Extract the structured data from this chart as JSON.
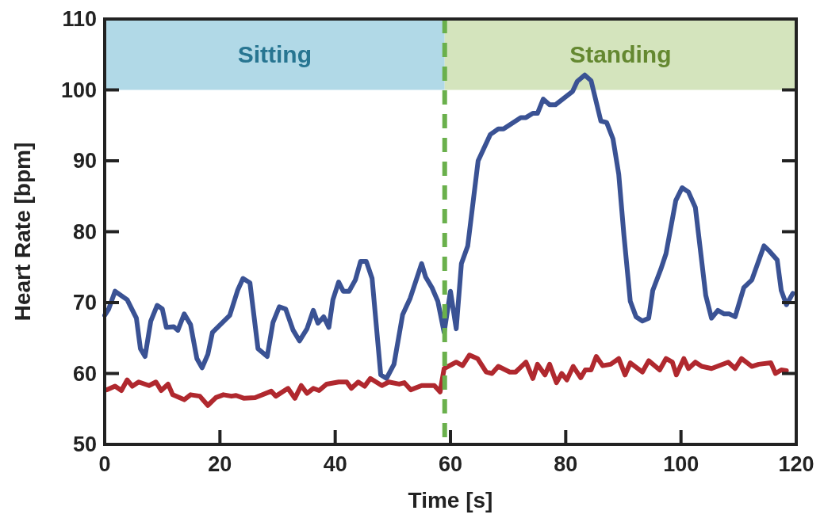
{
  "chart_data": {
    "type": "line",
    "xlabel": "Time [s]",
    "ylabel": "Heart Rate [bpm]",
    "xlim": [
      0,
      120
    ],
    "ylim": [
      50,
      110
    ],
    "xticks": [
      0,
      20,
      40,
      60,
      80,
      100,
      120
    ],
    "yticks": [
      50,
      60,
      70,
      80,
      90,
      100,
      110
    ],
    "grid": false,
    "marker": "none",
    "line_style": "solid",
    "series": [
      {
        "color": "#3a5294",
        "x": [
          0,
          0.7,
          1.8,
          3.9,
          5.5,
          6.2,
          7,
          8,
          9.1,
          10,
          10.7,
          12,
          12.7,
          13.8,
          14.9,
          16,
          16.9,
          17.9,
          18.7,
          21.7,
          23.1,
          24,
          25.2,
          26.6,
          28.2,
          29.2,
          30.3,
          31.4,
          32.7,
          33.8,
          35.1,
          36.2,
          37,
          38,
          38.9,
          39.6,
          40.6,
          41.4,
          42.4,
          43.5,
          44.4,
          45.4,
          46.4,
          47.9,
          48.9,
          50.2,
          51.7,
          53,
          55,
          55.7,
          56.8,
          57.8,
          58.9,
          60,
          61,
          61.9,
          63,
          64.8,
          66.9,
          68.3,
          69.2,
          72.2,
          73.1,
          74.3,
          75.1,
          76.1,
          77.2,
          78.2,
          81.2,
          82,
          83.3,
          84.4,
          86.1,
          87.1,
          88.2,
          89.2,
          90.1,
          91.2,
          92.2,
          93.3,
          94.4,
          95.1,
          96.5,
          97.4,
          99.1,
          100.2,
          101.3,
          102.5,
          104.3,
          105.3,
          106.4,
          107.5,
          108.4,
          109.4,
          110.9,
          112.3,
          114.4,
          115.3,
          116.7,
          117.4,
          118.3,
          119.4
        ],
        "values": [
          68.2,
          69.1,
          71.6,
          70.4,
          67.8,
          63.5,
          62.4,
          67.4,
          69.6,
          69.1,
          66.5,
          66.6,
          66.1,
          68.4,
          66.9,
          62.1,
          60.8,
          62.7,
          65.8,
          68.2,
          71.8,
          73.4,
          72.8,
          63.5,
          62.4,
          67.2,
          69.4,
          69.1,
          66.1,
          64.6,
          66.3,
          68.9,
          67.1,
          68,
          66.5,
          70.4,
          72.9,
          71.6,
          71.6,
          73.2,
          75.8,
          75.8,
          73.4,
          59.8,
          59.3,
          61.3,
          68.3,
          70.6,
          75.5,
          73.6,
          72.1,
          70.2,
          65.8,
          71.6,
          66.3,
          75.5,
          78,
          90,
          93.7,
          94.5,
          94.5,
          96.1,
          96.1,
          96.7,
          96.7,
          98.7,
          97.9,
          97.9,
          99.8,
          101.2,
          102.1,
          101.3,
          95.6,
          95.4,
          93.1,
          88.1,
          79.5,
          70.2,
          68,
          67.4,
          67.8,
          71.7,
          74.7,
          76.9,
          84.4,
          86.2,
          85.6,
          83.4,
          71,
          67.8,
          68.9,
          68.4,
          68.4,
          68,
          72.1,
          73.2,
          78,
          77.3,
          76,
          71.7,
          69.7,
          71.3
        ]
      },
      {
        "color": "#b0282e",
        "x": [
          0.4,
          1.8,
          2.9,
          3.9,
          4.8,
          5.9,
          7.7,
          8.9,
          9.8,
          11,
          11.8,
          13.8,
          14.9,
          16.5,
          17.9,
          19.3,
          20.6,
          22,
          22.8,
          24.2,
          26.1,
          28.9,
          29.7,
          31.8,
          33,
          34.1,
          35.1,
          36.2,
          37.2,
          38.5,
          40.6,
          42,
          42.8,
          44,
          45.1,
          46.1,
          48.1,
          49.3,
          51.1,
          52,
          53.1,
          55,
          57.2,
          58.2,
          58.9,
          61,
          62.1,
          63.3,
          64.7,
          66.2,
          67.2,
          68.3,
          70.3,
          71.3,
          73.1,
          74.3,
          75.1,
          76.4,
          77.2,
          78.4,
          79.3,
          80.2,
          81.3,
          82.6,
          83.4,
          84.4,
          85.3,
          86.4,
          87.8,
          89.2,
          90.3,
          91.2,
          93.3,
          94.4,
          96.3,
          97.4,
          98.5,
          99.2,
          100.5,
          101.3,
          102.5,
          103.6,
          105.3,
          108.2,
          109.4,
          110.5,
          112.3,
          113.5,
          115.6,
          116.4,
          117.4,
          118.3
        ],
        "values": [
          57.7,
          58.2,
          57.6,
          59.1,
          58.2,
          58.8,
          58.3,
          58.8,
          57.6,
          58.5,
          57,
          56.3,
          57,
          56.8,
          55.5,
          56.6,
          57,
          56.8,
          56.9,
          56.5,
          56.6,
          57.5,
          56.8,
          57.9,
          56.5,
          58.3,
          57.2,
          57.9,
          57.6,
          58.5,
          58.8,
          58.8,
          57.9,
          58.8,
          58.2,
          59.3,
          58.3,
          58.8,
          58.5,
          58.7,
          57.7,
          58.3,
          58.3,
          57.4,
          60.7,
          61.6,
          61.1,
          62.6,
          62.1,
          60.2,
          60,
          61,
          60.2,
          60.2,
          61.6,
          59.3,
          61.3,
          59.8,
          61.3,
          58.7,
          60,
          59.1,
          61,
          59.4,
          60.5,
          60.5,
          62.4,
          61.1,
          61.3,
          62.1,
          59.8,
          61.5,
          60.2,
          61.8,
          60.5,
          62.1,
          61.6,
          59.8,
          62.1,
          60.7,
          61.6,
          61,
          60.7,
          61.6,
          60.7,
          62.1,
          61,
          61.3,
          61.5,
          60,
          60.5,
          60.4
        ]
      }
    ],
    "bands": [
      {
        "axis": "x",
        "from": 0,
        "to": 59,
        "label": "Sitting",
        "color": "#b1d9e7"
      },
      {
        "axis": "x",
        "from": 59,
        "to": 120,
        "label": "Standing",
        "color": "#d4e4bd"
      }
    ],
    "ref_lines": [
      {
        "axis": "x",
        "value": 59,
        "color": "#6ab04c",
        "line_style": "dashed"
      }
    ]
  }
}
